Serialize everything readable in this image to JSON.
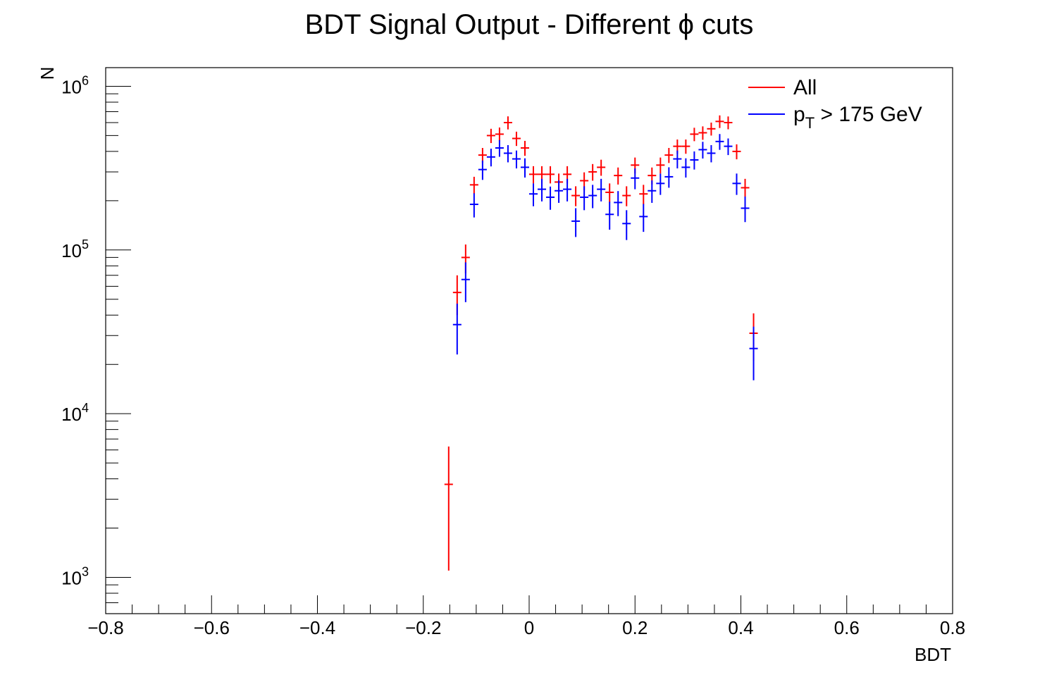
{
  "chart_data": {
    "type": "scatter",
    "title": "BDT Signal Output - Different ϕ cuts",
    "xlabel": "BDT",
    "ylabel": "N",
    "xlim": [
      -0.8,
      0.8
    ],
    "ylim": [
      600,
      1300000
    ],
    "yscale": "log",
    "grid": false,
    "legend_position": "top-right",
    "x_tick_labels": [
      "−0.8",
      "−0.6",
      "−0.4",
      "−0.2",
      "0",
      "0.2",
      "0.4",
      "0.6",
      "0.8"
    ],
    "y_tick_labels": [
      {
        "base": "10",
        "exp": "3"
      },
      {
        "base": "10",
        "exp": "4"
      },
      {
        "base": "10",
        "exp": "5"
      },
      {
        "base": "10",
        "exp": "6"
      }
    ],
    "series": [
      {
        "name": "All",
        "color": "#ff0000",
        "x": [
          -0.152,
          -0.136,
          -0.12,
          -0.104,
          -0.088,
          -0.072,
          -0.056,
          -0.04,
          -0.024,
          -0.008,
          0.008,
          0.024,
          0.04,
          0.056,
          0.072,
          0.088,
          0.104,
          0.12,
          0.136,
          0.152,
          0.168,
          0.184,
          0.2,
          0.216,
          0.232,
          0.248,
          0.264,
          0.28,
          0.296,
          0.312,
          0.328,
          0.344,
          0.36,
          0.376,
          0.392,
          0.408,
          0.424
        ],
        "y": [
          3700,
          55000,
          90000,
          250000,
          380000,
          500000,
          510000,
          600000,
          480000,
          420000,
          290000,
          290000,
          290000,
          260000,
          290000,
          215000,
          265000,
          300000,
          320000,
          225000,
          285000,
          215000,
          330000,
          220000,
          285000,
          330000,
          380000,
          430000,
          430000,
          510000,
          520000,
          550000,
          610000,
          600000,
          400000,
          240000,
          31000
        ],
        "yerr_low": [
          2600,
          15000,
          18000,
          30000,
          40000,
          50000,
          50000,
          55000,
          48000,
          44000,
          35000,
          35000,
          35000,
          33000,
          35000,
          30000,
          33000,
          35000,
          36000,
          30000,
          34000,
          30000,
          37000,
          30000,
          34000,
          37000,
          40000,
          43000,
          43000,
          48000,
          49000,
          50000,
          54000,
          54000,
          42000,
          32000,
          10000
        ],
        "yerr_high": [
          2600,
          15000,
          18000,
          30000,
          40000,
          50000,
          50000,
          55000,
          48000,
          44000,
          35000,
          35000,
          35000,
          33000,
          35000,
          30000,
          33000,
          35000,
          36000,
          30000,
          34000,
          30000,
          37000,
          30000,
          34000,
          37000,
          40000,
          43000,
          43000,
          48000,
          49000,
          50000,
          54000,
          54000,
          42000,
          32000,
          10000
        ]
      },
      {
        "name": "p_T > 175 GeV",
        "color": "#0000ff",
        "x": [
          -0.136,
          -0.12,
          -0.104,
          -0.088,
          -0.072,
          -0.056,
          -0.04,
          -0.024,
          -0.008,
          0.008,
          0.024,
          0.04,
          0.056,
          0.072,
          0.088,
          0.104,
          0.12,
          0.136,
          0.152,
          0.168,
          0.184,
          0.2,
          0.216,
          0.232,
          0.248,
          0.264,
          0.28,
          0.296,
          0.312,
          0.328,
          0.344,
          0.36,
          0.376,
          0.392,
          0.408,
          0.424
        ],
        "y": [
          35000,
          66000,
          190000,
          310000,
          370000,
          420000,
          390000,
          360000,
          320000,
          220000,
          235000,
          210000,
          230000,
          235000,
          150000,
          210000,
          215000,
          235000,
          165000,
          195000,
          145000,
          275000,
          160000,
          230000,
          255000,
          280000,
          360000,
          320000,
          355000,
          410000,
          390000,
          460000,
          430000,
          255000,
          180000,
          25000
        ],
        "yerr_low": [
          12000,
          18000,
          32000,
          42000,
          46000,
          49000,
          47000,
          45000,
          43000,
          35000,
          37000,
          34000,
          36000,
          37000,
          30000,
          35000,
          35000,
          37000,
          32000,
          34000,
          30000,
          40000,
          31000,
          36000,
          38000,
          40000,
          45000,
          43000,
          45000,
          48000,
          47000,
          51000,
          50000,
          38000,
          32000,
          9000
        ],
        "yerr_high": [
          12000,
          18000,
          32000,
          42000,
          46000,
          49000,
          47000,
          45000,
          43000,
          35000,
          37000,
          34000,
          36000,
          37000,
          30000,
          35000,
          35000,
          37000,
          32000,
          34000,
          30000,
          40000,
          31000,
          36000,
          38000,
          40000,
          45000,
          43000,
          45000,
          48000,
          47000,
          51000,
          50000,
          38000,
          32000,
          9000
        ]
      }
    ]
  },
  "legend": {
    "all_label": "All",
    "pt_label_main": "p",
    "pt_label_sub": "T",
    "pt_label_rest": " > 175 GeV"
  }
}
